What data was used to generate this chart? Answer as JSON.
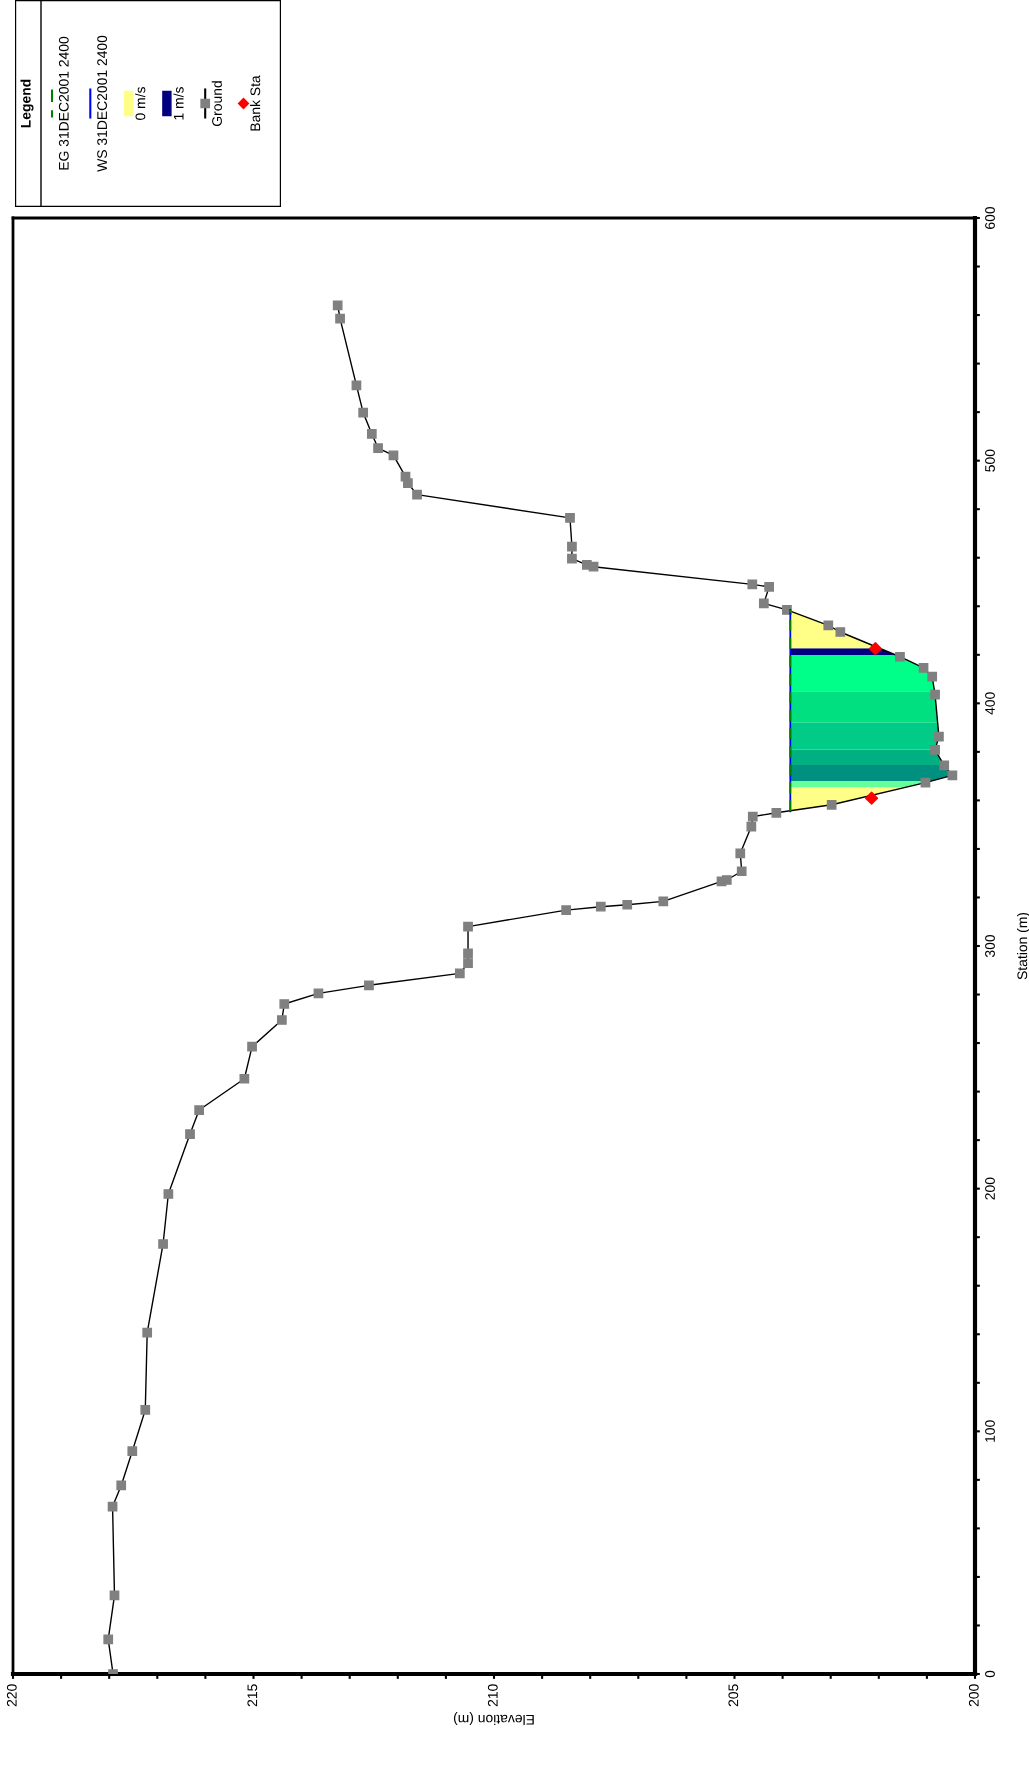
{
  "chart_data": {
    "type": "line",
    "xlabel": "Elevation (m)",
    "ylabel": "Station (m)",
    "legend_title": "Legend",
    "legend": "top left",
    "grid": false,
    "xlim": [
      220,
      200
    ],
    "xticks": [
      200,
      {
        "value": 201,
        "label": null
      },
      {
        "value": 202,
        "label": null
      },
      {
        "value": 203,
        "label": null
      },
      {
        "value": 204,
        "label": null
      },
      205,
      {
        "value": 206,
        "label": null
      },
      {
        "value": 207,
        "label": null
      },
      {
        "value": 208,
        "label": null
      },
      {
        "value": 209,
        "label": null
      },
      210,
      {
        "value": 211,
        "label": null
      },
      {
        "value": 212,
        "label": null
      },
      {
        "value": 213,
        "label": null
      },
      {
        "value": 214,
        "label": null
      },
      215,
      {
        "value": 216,
        "label": null
      },
      {
        "value": 217,
        "label": null
      },
      {
        "value": 218,
        "label": null
      },
      {
        "value": 219,
        "label": null
      },
      220
    ],
    "ylim": [
      0,
      600
    ],
    "yticks": [
      0,
      {
        "value": 20,
        "label": null
      },
      {
        "value": 40,
        "label": null
      },
      {
        "value": 60,
        "label": null
      },
      {
        "value": 80,
        "label": null
      },
      100,
      {
        "value": 120,
        "label": null
      },
      {
        "value": 140,
        "label": null
      },
      {
        "value": 160,
        "label": null
      },
      {
        "value": 180,
        "label": null
      },
      200,
      {
        "value": 220,
        "label": null
      },
      {
        "value": 240,
        "label": null
      },
      {
        "value": 260,
        "label": null
      },
      {
        "value": 280,
        "label": null
      },
      300,
      {
        "value": 320,
        "label": null
      },
      {
        "value": 340,
        "label": null
      },
      {
        "value": 360,
        "label": null
      },
      {
        "value": 380,
        "label": null
      },
      400,
      {
        "value": 420,
        "label": null
      },
      {
        "value": 440,
        "label": null
      },
      {
        "value": 460,
        "label": null
      },
      {
        "value": 480,
        "label": null
      },
      500,
      {
        "value": 520,
        "label": null
      },
      {
        "value": 540,
        "label": null
      },
      {
        "value": 560,
        "label": null
      },
      {
        "value": 580,
        "label": null
      },
      600
    ],
    "series": [
      {
        "name": "EG 31DEC2001 2400",
        "color": "#008000",
        "line_style": "dashed",
        "marker": "none",
        "x": [
          203.84,
          203.84
        ],
        "values": [
          355.5,
          438.5
        ]
      },
      {
        "name": "WS 31DEC2001 2400",
        "color": "#0000ff",
        "line_style": "solid",
        "marker": "none",
        "x": [
          203.84,
          203.84
        ],
        "values": [
          355.5,
          438.5
        ]
      },
      {
        "name": "Ground",
        "color": "#808080",
        "line_style": "solid",
        "marker": "square",
        "x": [
          217.92,
          218.02,
          217.89,
          217.93,
          217.75,
          217.52,
          217.25,
          217.21,
          216.88,
          216.77,
          216.32,
          216.13,
          215.19,
          215.03,
          214.41,
          214.36,
          213.65,
          212.6,
          210.71,
          210.54,
          210.54,
          210.54,
          208.5,
          207.78,
          207.23,
          206.48,
          205.27,
          205.16,
          204.85,
          204.88,
          204.65,
          204.62,
          204.13,
          202.98,
          201.03,
          200.47,
          200.64,
          200.83,
          200.75,
          200.83,
          200.89,
          201.07,
          201.56,
          202.8,
          203.05,
          203.91,
          204.39,
          204.28,
          204.63,
          207.93,
          208.07,
          208.38,
          208.38,
          208.42,
          211.6,
          211.79,
          211.84,
          212.09,
          212.41,
          212.54,
          212.72,
          212.86,
          213.2,
          213.25
        ],
        "values": [
          0,
          14.3,
          32.4,
          69,
          77.7,
          91.8,
          108.8,
          140.7,
          177.2,
          197.8,
          222.5,
          232.4,
          245.3,
          258.5,
          269.5,
          276.1,
          280.5,
          283.8,
          288.7,
          292.9,
          297,
          308,
          314.8,
          316.2,
          317,
          318.4,
          326.6,
          327.2,
          330.8,
          338.2,
          349.2,
          353.3,
          354.9,
          358.2,
          367.3,
          370.3,
          374.4,
          380.8,
          386.3,
          403.6,
          411,
          414.6,
          419.2,
          429.4,
          432.1,
          438.5,
          441.2,
          448,
          449,
          456.3,
          457.1,
          459.6,
          464.6,
          476.4,
          486,
          490.7,
          493.4,
          502.2,
          505.2,
          511,
          519.8,
          531,
          558.5,
          564
        ]
      },
      {
        "name": "Bank Sta",
        "type": "scatter",
        "color": "#ff0000",
        "marker": "diamond",
        "x": [
          202.15,
          202.07
        ],
        "values": [
          360.9,
          422.5
        ]
      }
    ],
    "bands": [
      {
        "axis": "y",
        "from": 355.5,
        "to": 365.4,
        "color": "#ffff88",
        "label": "0 m/s"
      },
      {
        "axis": "y",
        "from": 365.4,
        "to": 368,
        "color": "#66ff99"
      },
      {
        "axis": "y",
        "from": 368,
        "to": 374.6,
        "color": "#009080"
      },
      {
        "axis": "y",
        "from": 374.6,
        "to": 381,
        "color": "#00b080"
      },
      {
        "axis": "y",
        "from": 381,
        "to": 392,
        "color": "#00cc88"
      },
      {
        "axis": "y",
        "from": 392,
        "to": 405,
        "color": "#00e080"
      },
      {
        "axis": "y",
        "from": 405,
        "to": 419.9,
        "color": "#00ff88"
      },
      {
        "axis": "y",
        "from": 419.9,
        "to": 422.7,
        "color": "#000080",
        "label": "1 m/s"
      },
      {
        "axis": "y",
        "from": 422.7,
        "to": 438.5,
        "color": "#ffff88"
      }
    ]
  }
}
